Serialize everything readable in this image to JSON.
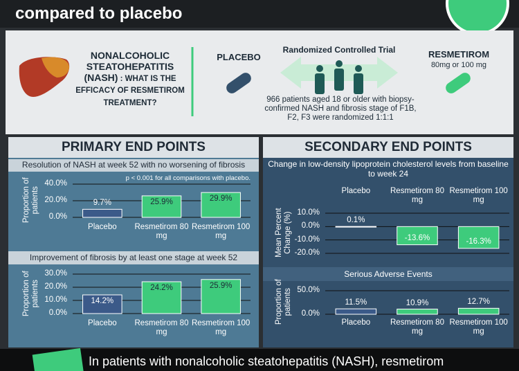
{
  "header": {
    "title": "compared to placebo"
  },
  "intro": {
    "question_bold": "NONALCOHOLIC STEATOHEPATITIS (NASH)",
    "question_rest": ": WHAT IS THE EFFICACY OF RESMETIROM TREATMENT?",
    "placebo": "PLACEBO",
    "trial": "Randomized Controlled Trial",
    "drug": "RESMETIROM",
    "dose": "80mg or 100 mg",
    "population": "966 patients aged 18 or older with biopsy-confirmed NASH and fibrosis stage of F1B, F2, F3 were randomized 1:1:1"
  },
  "primary": {
    "title": "PRIMARY END POINTS",
    "charts": [
      {
        "type": "bar",
        "title": "Resolution of NASH at week 52 with no worsening of fibrosis",
        "note": "p < 0.001 for all comparisons with placebo.",
        "ylabel": "Proportion of patients",
        "categories": [
          "Placebo",
          "Resmetirom 80 mg",
          "Resmetirom 100 mg"
        ],
        "colors": [
          "#3b5a89",
          "#3ecb7c",
          "#3ecb7c"
        ],
        "values": [
          9.7,
          25.9,
          29.9
        ],
        "value_labels": [
          "9.7%",
          "25.9%",
          "29.9%"
        ],
        "ylim": [
          0,
          40
        ],
        "yticks": [
          {
            "value": 0,
            "label": "0.0%"
          },
          {
            "value": 20,
            "label": "20.0%"
          },
          {
            "value": 40,
            "label": "40.0%"
          }
        ]
      },
      {
        "type": "bar",
        "title": "Improvement of fibrosis by at least one stage at week 52",
        "ylabel": "Proportion of patients",
        "categories": [
          "Placebo",
          "Resmetirom 80 mg",
          "Resmetirom 100 mg"
        ],
        "colors": [
          "#3b5a89",
          "#3ecb7c",
          "#3ecb7c"
        ],
        "values": [
          14.2,
          24.2,
          25.9
        ],
        "value_labels": [
          "14.2%",
          "24.2%",
          "25.9%"
        ],
        "ylim": [
          0,
          30
        ],
        "yticks": [
          {
            "value": 0,
            "label": "0.0%"
          },
          {
            "value": 10,
            "label": "10.0%"
          },
          {
            "value": 20,
            "label": "20.0%"
          },
          {
            "value": 30,
            "label": "30.0%"
          }
        ]
      }
    ]
  },
  "secondary": {
    "title": "SECONDARY END POINTS",
    "charts": [
      {
        "type": "bar",
        "title": "Change in low-density lipoprotein cholesterol levels from baseline to week 24",
        "ylabel": "Mean Percent Change (%)",
        "categories": [
          "Placebo",
          "Resmetirom 80 mg",
          "Resmetirom 100 mg"
        ],
        "colors": [
          "#3b5a89",
          "#3ecb7c",
          "#3ecb7c"
        ],
        "values": [
          0.1,
          -13.6,
          -16.3
        ],
        "value_labels": [
          "0.1%",
          "-13.6%",
          "-16.3%"
        ],
        "ylim": [
          -20,
          10
        ],
        "yticks": [
          {
            "value": 10,
            "label": "10.0%"
          },
          {
            "value": 0,
            "label": "0.0%"
          },
          {
            "value": -10,
            "label": "-10.0%"
          },
          {
            "value": -20,
            "label": "-20.0%"
          }
        ]
      },
      {
        "type": "bar",
        "title": "Serious Adverse Events",
        "ylabel": "Proportion of patients",
        "categories": [
          "Placebo",
          "Resmetirom 80 mg",
          "Resmetirom 100 mg"
        ],
        "colors": [
          "#3b5a89",
          "#3ecb7c",
          "#3ecb7c"
        ],
        "values": [
          11.5,
          10.9,
          12.7
        ],
        "value_labels": [
          "11.5%",
          "10.9%",
          "12.7%"
        ],
        "ylim": [
          0,
          50
        ],
        "yticks": [
          {
            "value": 0,
            "label": "0.0%"
          },
          {
            "value": 50,
            "label": "50.0%"
          }
        ]
      }
    ]
  },
  "footer": {
    "text": "In patients with nonalcoholic steatohepatitis (NASH), resmetirom"
  }
}
